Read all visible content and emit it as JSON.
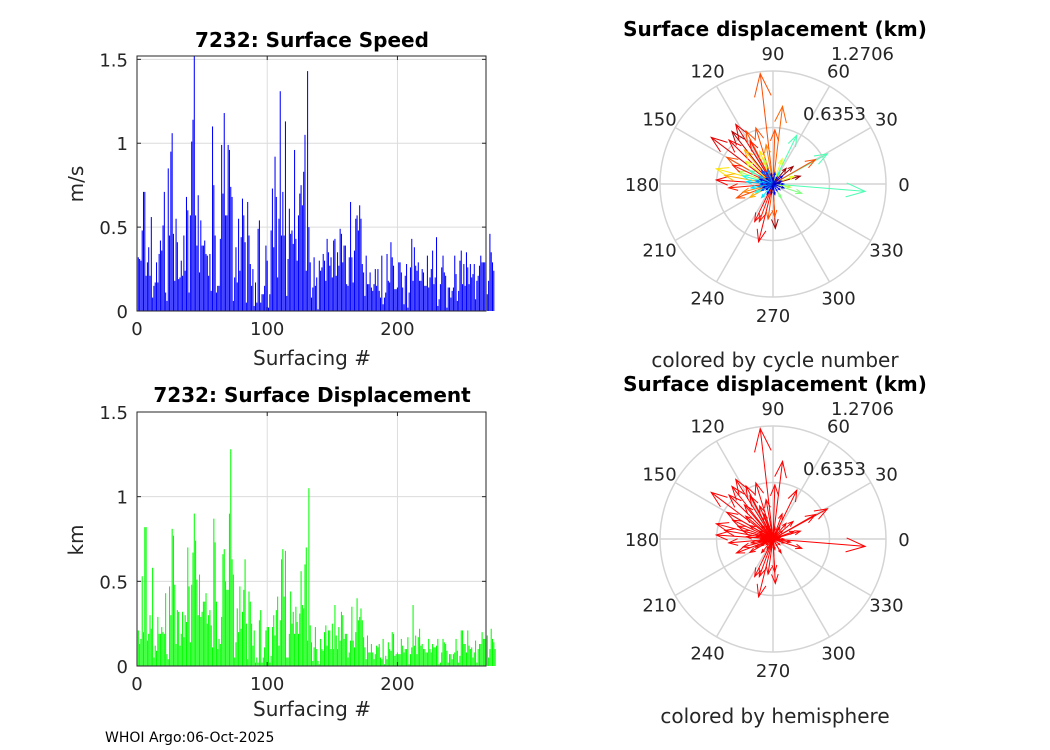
{
  "footer": "WHOI Argo:06-Oct-2025",
  "chart_data": [
    {
      "type": "bar",
      "title": "7232: Surface Speed",
      "xlabel": "Surfacing #",
      "ylabel": "m/s",
      "xlim": [
        0,
        268
      ],
      "ylim": [
        0,
        1.52
      ],
      "xticks": [
        "0",
        "100",
        "200"
      ],
      "yticks": [
        "0",
        "0.5",
        "1",
        "1.5"
      ],
      "grid": true,
      "color": "#0000ff",
      "values": [
        0.32,
        0.31,
        0.3,
        0.48,
        0.71,
        0.71,
        0.21,
        0.29,
        0.38,
        0.21,
        0.56,
        0.08,
        0.15,
        0.17,
        0.29,
        0.17,
        0.34,
        0.42,
        0.36,
        0.51,
        0.71,
        0.11,
        0.06,
        0.85,
        0.45,
        0.95,
        1.06,
        0.46,
        0.18,
        0.55,
        0.41,
        0.19,
        0.2,
        0.3,
        0.21,
        0.45,
        0.24,
        0.68,
        0.6,
        0.11,
        0.57,
        1.01,
        1.14,
        1.52,
        0.57,
        0.39,
        0.69,
        0.23,
        0.54,
        0.39,
        0.39,
        0.42,
        0.34,
        0.33,
        0.21,
        0.34,
        0.12,
        1.1,
        0.75,
        0.45,
        0.11,
        0.15,
        0.15,
        0.43,
        0.99,
        0.7,
        1.18,
        0.57,
        0.57,
        0.99,
        0.96,
        0.74,
        0.68,
        0.06,
        0.2,
        0.38,
        0.17,
        0.55,
        0.24,
        0.44,
        0.67,
        0.57,
        0.41,
        0.05,
        0.65,
        0.45,
        0.28,
        0.15,
        0.25,
        0.03,
        0.17,
        0.05,
        0.49,
        0.54,
        0.05,
        0.1,
        0.1,
        0.15,
        0.39,
        0.3,
        0.02,
        0.1,
        0.48,
        0.73,
        0.38,
        0.92,
        0.68,
        0.2,
        0.55,
        1.31,
        0.45,
        0.71,
        0.45,
        1.13,
        0.09,
        0.31,
        0.61,
        0.46,
        0.48,
        0.4,
        0.96,
        0.43,
        0.3,
        0.57,
        0.7,
        0.75,
        0.63,
        0.83,
        1.05,
        0.24,
        1.43,
        0.5,
        0.29,
        0.08,
        0.14,
        0.32,
        0.15,
        0.2,
        0.01,
        0.3,
        0.24,
        0.26,
        0.34,
        0.3,
        0.18,
        0.43,
        0.35,
        0.27,
        0.32,
        0.2,
        0.42,
        0.43,
        0.21,
        0.35,
        0.27,
        0.49,
        0.46,
        0.29,
        0.39,
        0.39,
        0.16,
        0.15,
        0.32,
        0.65,
        0.32,
        0.17,
        0.36,
        0.55,
        0.57,
        0.48,
        0.63,
        0.55,
        0.28,
        0.23,
        0.09,
        0.33,
        0.16,
        0.16,
        0.23,
        0.14,
        0.12,
        0.16,
        0.25,
        0.15,
        0.25,
        0.12,
        0.08,
        0.33,
        0.04,
        0.08,
        0.11,
        0.34,
        0.18,
        0.17,
        0.41,
        0.32,
        0.27,
        0.13,
        0.13,
        0.14,
        0.29,
        0.29,
        0.23,
        0.14,
        0.04,
        0.21,
        0.28,
        0.02,
        0.11,
        0.26,
        0.43,
        0.18,
        0.38,
        0.27,
        0.24,
        0.29,
        0.18,
        0.18,
        0.25,
        0.23,
        0.15,
        0.15,
        0.33,
        0.14,
        0.2,
        0.25,
        0.36,
        0.16,
        0.2,
        0.44,
        0.03,
        0.07,
        0.16,
        0.26,
        0.33,
        0.23,
        0.21,
        0.02,
        0.14,
        0.14,
        0.08,
        0.12,
        0.14,
        0.33,
        0.22,
        0.06,
        0.12,
        0.3,
        0.36,
        0.16,
        0.28,
        0.15,
        0.35,
        0.26,
        0.16,
        0.28,
        0.2,
        0.22,
        0.28,
        0.07,
        0.18,
        0.21,
        0.27,
        0.33,
        0.29,
        0.29,
        0.29,
        0.2,
        0.1,
        0.18,
        0.46,
        0.35,
        0.29,
        0.24
      ]
    },
    {
      "type": "bar",
      "title": "7232: Surface Displacement",
      "xlabel": "Surfacing #",
      "ylabel": "km",
      "xlim": [
        0,
        268
      ],
      "ylim": [
        0,
        1.5
      ],
      "xticks": [
        "0",
        "100",
        "200"
      ],
      "yticks": [
        "0",
        "0.5",
        "1",
        "1.5"
      ],
      "grid": true,
      "color": "#00ff00",
      "values": [
        0.21,
        0.13,
        0.16,
        0.53,
        0.2,
        0.82,
        0.82,
        0.15,
        0.19,
        0.3,
        0.22,
        0.58,
        0.05,
        0.12,
        0.09,
        0.29,
        0.19,
        0.19,
        0.23,
        0.2,
        0.19,
        0.43,
        0.07,
        0.04,
        0.47,
        0.3,
        0.81,
        0.77,
        0.48,
        0.13,
        0.33,
        0.32,
        0.12,
        0.19,
        0.32,
        0.17,
        0.3,
        0.26,
        0.7,
        0.47,
        0.14,
        0.48,
        0.67,
        0.9,
        0.74,
        0.51,
        0.3,
        0.54,
        0.29,
        0.32,
        0.38,
        0.38,
        0.43,
        0.25,
        0.3,
        0.33,
        0.24,
        0.11,
        0.87,
        0.73,
        0.38,
        0.1,
        0.16,
        0.13,
        0.29,
        0.66,
        0.69,
        0.5,
        0.45,
        0.45,
        0.9,
        1.28,
        0.63,
        0.54,
        0.05,
        0.14,
        0.34,
        0.2,
        0.47,
        0.22,
        0.32,
        0.45,
        0.63,
        0.25,
        0.04,
        0.44,
        0.38,
        0.25,
        0.12,
        0.21,
        0.02,
        0.05,
        0.02,
        0.27,
        0.33,
        0.02,
        0.05,
        0.11,
        0.21,
        0.23,
        0.23,
        0.02,
        0.06,
        0.23,
        0.3,
        0.18,
        0.33,
        0.41,
        0.12,
        0.27,
        0.63,
        0.69,
        0.41,
        0.68,
        0.05,
        0.05,
        0.19,
        0.44,
        0.25,
        0.32,
        0.19,
        0.35,
        0.26,
        0.19,
        0.31,
        0.56,
        0.36,
        0.34,
        0.6,
        0.7,
        0.15,
        1.05,
        0.24,
        0.14,
        0.03,
        0.11,
        0.23,
        0.1,
        0.03,
        0.01,
        0.16,
        0.1,
        0.09,
        0.2,
        0.24,
        0.12,
        0.21,
        0.21,
        0.1,
        0.25,
        0.1,
        0.36,
        0.18,
        0.1,
        0.23,
        0.15,
        0.32,
        0.3,
        0.16,
        0.19,
        0.19,
        0.05,
        0.08,
        0.15,
        0.35,
        0.15,
        0.11,
        0.2,
        0.4,
        0.27,
        0.29,
        0.34,
        0.27,
        0.17,
        0.11,
        0.04,
        0.18,
        0.08,
        0.08,
        0.13,
        0.08,
        0.04,
        0.07,
        0.12,
        0.11,
        0.13,
        0.05,
        0.04,
        0.16,
        0.01,
        0.06,
        0.04,
        0.14,
        0.1,
        0.09,
        0.2,
        0.19,
        0.06,
        0.07,
        0.08,
        0.07,
        0.07,
        0.16,
        0.12,
        0.08,
        0.1,
        0.1,
        0.17,
        0.01,
        0.07,
        0.11,
        0.36,
        0.12,
        0.18,
        0.07,
        0.17,
        0.22,
        0.12,
        0.13,
        0.1,
        0.1,
        0.08,
        0.08,
        0.16,
        0.1,
        0.08,
        0.13,
        0.11,
        0.11,
        0.12,
        0.16,
        0.01,
        0.02,
        0.08,
        0.16,
        0.14,
        0.13,
        0.09,
        0.02,
        0.07,
        0.07,
        0.04,
        0.07,
        0.08,
        0.16,
        0.09,
        0.02,
        0.06,
        0.21,
        0.21,
        0.13,
        0.13,
        0.08,
        0.21,
        0.12,
        0.1,
        0.11,
        0.05,
        0.08,
        0.15,
        0.02,
        0.1,
        0.13,
        0.13,
        0.2,
        0.16,
        0.16,
        0.13,
        0.18,
        0.05,
        0.1,
        0.22,
        0.16,
        0.14,
        0.1
      ]
    },
    {
      "type": "polar-compass",
      "title": "Surface displacement (km)",
      "caption": "colored by cycle number",
      "rmax": 1.2706,
      "ring_labels": [
        "0.6353",
        "1.2706"
      ],
      "angle_labels": [
        "0",
        "30",
        "60",
        "90",
        "120",
        "150",
        "180",
        "210",
        "240",
        "270",
        "300",
        "330"
      ],
      "colormap": "jet",
      "arrows_note": "[angle_deg, magnitude_km, cycle_fraction]",
      "arrows": [
        [
          96.6,
          1.25,
          0.8
        ],
        [
          83,
          0.88,
          0.78
        ],
        [
          64,
          0.61,
          0.45
        ],
        [
          29,
          0.7,
          0.45
        ],
        [
          355.4,
          1.04,
          0.45
        ],
        [
          30,
          0.55,
          0.8
        ],
        [
          16,
          0.32,
          0.97
        ],
        [
          41,
          0.3,
          0.97
        ],
        [
          342,
          0.34,
          0.5
        ],
        [
          273,
          0.5,
          0.97
        ],
        [
          256,
          0.67,
          0.88
        ],
        [
          244,
          0.47,
          0.88
        ],
        [
          273,
          0.37,
          0.8
        ],
        [
          143,
          0.87,
          0.9
        ],
        [
          122,
          0.79,
          0.9
        ],
        [
          117,
          0.67,
          0.8
        ],
        [
          107,
          0.66,
          0.8
        ],
        [
          176,
          0.64,
          0.88
        ],
        [
          165,
          0.66,
          0.65
        ],
        [
          201,
          0.44,
          0.8
        ],
        [
          160,
          0.42,
          0.55
        ],
        [
          150,
          0.6,
          0.8
        ],
        [
          112,
          0.4,
          0.65
        ],
        [
          88,
          0.61,
          0.8
        ],
        [
          50,
          0.23,
          0.97
        ],
        [
          300,
          0.18,
          0.5
        ],
        [
          128,
          0.75,
          0.95
        ],
        [
          135,
          0.7,
          0.88
        ],
        [
          155,
          0.5,
          0.85
        ],
        [
          170,
          0.55,
          0.7
        ],
        [
          185,
          0.5,
          0.85
        ],
        [
          195,
          0.35,
          0.75
        ],
        [
          210,
          0.3,
          0.7
        ],
        [
          250,
          0.45,
          0.85
        ],
        [
          262,
          0.4,
          0.8
        ],
        [
          100,
          0.45,
          0.75
        ],
        [
          70,
          0.3,
          0.6
        ],
        [
          20,
          0.25,
          0.6
        ],
        [
          350,
          0.2,
          0.55
        ],
        [
          140,
          0.4,
          0.6
        ],
        [
          130,
          0.5,
          0.7
        ],
        [
          118,
          0.55,
          0.85
        ],
        [
          165,
          0.35,
          0.4
        ],
        [
          175,
          0.3,
          0.35
        ],
        [
          190,
          0.25,
          0.35
        ],
        [
          150,
          0.3,
          0.45
        ],
        [
          110,
          0.3,
          0.55
        ],
        [
          60,
          0.15,
          0.4
        ],
        [
          205,
          0.22,
          0.4
        ],
        [
          230,
          0.2,
          0.35
        ],
        [
          0,
          0.12,
          0.1
        ],
        [
          20,
          0.1,
          0.1
        ],
        [
          40,
          0.14,
          0.12
        ],
        [
          60,
          0.09,
          0.08
        ],
        [
          80,
          0.13,
          0.15
        ],
        [
          100,
          0.12,
          0.1
        ],
        [
          120,
          0.15,
          0.18
        ],
        [
          140,
          0.1,
          0.05
        ],
        [
          160,
          0.16,
          0.12
        ],
        [
          180,
          0.14,
          0.15
        ],
        [
          200,
          0.12,
          0.1
        ],
        [
          220,
          0.1,
          0.08
        ],
        [
          240,
          0.13,
          0.12
        ],
        [
          260,
          0.11,
          0.05
        ],
        [
          280,
          0.12,
          0.1
        ],
        [
          300,
          0.09,
          0.15
        ],
        [
          320,
          0.1,
          0.12
        ],
        [
          340,
          0.13,
          0.08
        ],
        [
          170,
          0.2,
          0.25
        ],
        [
          150,
          0.18,
          0.3
        ],
        [
          190,
          0.17,
          0.28
        ],
        [
          130,
          0.2,
          0.2
        ],
        [
          110,
          0.18,
          0.25
        ],
        [
          210,
          0.15,
          0.22
        ],
        [
          10,
          0.08,
          0.05
        ],
        [
          90,
          0.07,
          0.05
        ],
        [
          270,
          0.06,
          0.05
        ],
        [
          180,
          0.08,
          0.05
        ]
      ]
    },
    {
      "type": "polar-compass",
      "title": "Surface displacement (km)",
      "caption": "colored by hemisphere",
      "rmax": 1.2706,
      "ring_labels": [
        "0.6353",
        "1.2706"
      ],
      "angle_labels": [
        "0",
        "30",
        "60",
        "90",
        "120",
        "150",
        "180",
        "210",
        "240",
        "270",
        "300",
        "330"
      ],
      "color": "#ff0000"
    }
  ]
}
